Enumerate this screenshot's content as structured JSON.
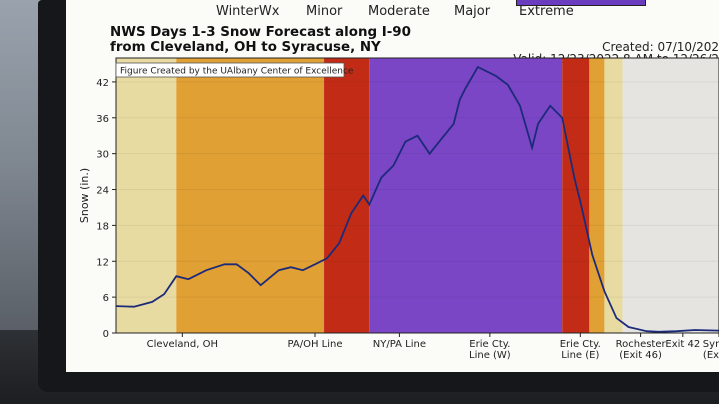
{
  "legend": {
    "labels": [
      "WinterWx",
      "Minor",
      "Moderate",
      "Major",
      "Extreme"
    ]
  },
  "header": {
    "title_line1": "NWS Days 1-3 Snow Forecast along I-90",
    "title_line2": "from Cleveland, OH to Syracuse, NY",
    "created": "Created: 07/10/202",
    "valid": "Valid: 12/23/2022 8 AM to 12/26/2"
  },
  "credit": "Figure Created by the UAlbany Center of Excellence",
  "colors": {
    "WinterWx": "#e8dba2",
    "Minor": "#e0a033",
    "Moderate": "#d65a1e",
    "Major": "#c22c16",
    "Extreme": "#7a46c6",
    "light": "#e6e4e0",
    "line": "#1c2a7a"
  },
  "chart_data": {
    "type": "line",
    "title": "NWS Days 1-3 Snow Forecast along I-90 from Cleveland, OH to Syracuse, NY",
    "ylabel": "Snow (in.)",
    "xlabel": "",
    "ylim": [
      0,
      46
    ],
    "yticks": [
      0,
      6,
      12,
      18,
      24,
      30,
      36,
      42
    ],
    "xticks": [
      {
        "x": 0.11,
        "label": "Cleveland, OH"
      },
      {
        "x": 0.33,
        "label": "PA/OH Line"
      },
      {
        "x": 0.47,
        "label": "NY/PA Line"
      },
      {
        "x": 0.62,
        "label": "Erie Cty.\nLine (W)"
      },
      {
        "x": 0.77,
        "label": "Erie Cty.\nLine (E)"
      },
      {
        "x": 0.87,
        "label": "Rochester\n(Exit 46)"
      },
      {
        "x": 0.94,
        "label": "Exit 42"
      },
      {
        "x": 1.0,
        "label": "Syr\n(Ex"
      }
    ],
    "impact_bands": [
      {
        "from": 0.0,
        "to": 0.1,
        "level": "WinterWx"
      },
      {
        "from": 0.1,
        "to": 0.345,
        "level": "Minor"
      },
      {
        "from": 0.345,
        "to": 0.42,
        "level": "Major"
      },
      {
        "from": 0.42,
        "to": 0.74,
        "level": "Extreme"
      },
      {
        "from": 0.74,
        "to": 0.785,
        "level": "Major"
      },
      {
        "from": 0.785,
        "to": 0.81,
        "level": "Minor"
      },
      {
        "from": 0.81,
        "to": 0.84,
        "level": "WinterWx"
      },
      {
        "from": 0.84,
        "to": 1.0,
        "level": "light"
      }
    ],
    "series": [
      {
        "x": [
          0.0,
          0.03,
          0.06,
          0.08,
          0.1,
          0.12,
          0.15,
          0.18,
          0.2,
          0.22,
          0.24,
          0.27,
          0.29,
          0.31,
          0.33,
          0.35,
          0.37,
          0.39,
          0.41,
          0.42,
          0.44,
          0.46,
          0.48,
          0.5,
          0.52,
          0.54,
          0.56,
          0.57,
          0.58,
          0.6,
          0.62,
          0.63,
          0.65,
          0.67,
          0.69,
          0.7,
          0.72,
          0.74,
          0.76,
          0.77,
          0.79,
          0.81,
          0.83,
          0.85,
          0.88,
          0.9,
          0.93,
          0.96,
          1.0
        ],
        "y": [
          4.5,
          4.4,
          5.2,
          6.5,
          9.5,
          9.0,
          10.5,
          11.5,
          11.5,
          10.0,
          8.0,
          10.5,
          11.0,
          10.5,
          11.5,
          12.5,
          15.0,
          20.0,
          23.0,
          21.5,
          26.0,
          28.0,
          32.0,
          33.0,
          30.0,
          32.5,
          35.0,
          39.0,
          41.0,
          44.5,
          43.5,
          43.0,
          41.5,
          38.0,
          31.0,
          35.0,
          38.0,
          36.0,
          26.0,
          22.0,
          13.0,
          7.0,
          2.5,
          1.0,
          0.3,
          0.2,
          0.3,
          0.5,
          0.4
        ]
      }
    ]
  }
}
